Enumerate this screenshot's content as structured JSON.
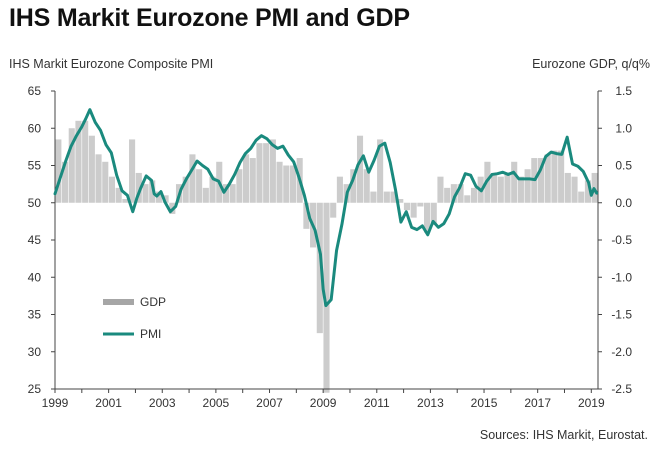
{
  "title": "IHS Markit Eurozone PMI and GDP",
  "source": "Sources: IHS Markit, Eurostat.",
  "colors": {
    "gdp_bar": "#cccccc",
    "pmi_line": "#1a8a7e",
    "axis": "#444444",
    "legend_gdp": "#a6a6a6"
  },
  "chart_data": {
    "type": "bar+line",
    "title": "IHS Markit Eurozone PMI and GDP",
    "ylabel_left": "IHS Markit Eurozone Composite PMI",
    "ylabel_right": "Eurozone GDP, q/q%",
    "ylim_left": [
      25,
      65
    ],
    "ylim_right": [
      -2.5,
      1.5
    ],
    "yticks_left": [
      "65",
      "60",
      "55",
      "50",
      "45",
      "40",
      "35",
      "30",
      "25"
    ],
    "yticks_right": [
      "1.5",
      "1.0",
      "0.5",
      "0.0",
      "-0.5",
      "-1.0",
      "-1.5",
      "-2.0",
      "-2.5"
    ],
    "xticks": [
      "1999",
      "2001",
      "2003",
      "2005",
      "2007",
      "2009",
      "2011",
      "2013",
      "2015",
      "2017",
      "2019"
    ],
    "xlim": [
      1999.0,
      2019.25
    ],
    "legend": {
      "gdp": "GDP",
      "pmi": "PMI",
      "placement": "lower-left"
    },
    "grid": false,
    "series": [
      {
        "name": "GDP",
        "type": "bar",
        "axis": "right",
        "quarters_start": "1999Q1",
        "values": [
          0.85,
          0.55,
          1.0,
          1.1,
          1.1,
          0.9,
          0.65,
          0.55,
          0.35,
          0.2,
          0.05,
          0.85,
          0.4,
          0.25,
          0.3,
          0.15,
          0.1,
          -0.15,
          0.25,
          0.35,
          0.65,
          0.45,
          0.2,
          0.35,
          0.55,
          0.25,
          0.25,
          0.45,
          0.65,
          0.6,
          0.8,
          0.8,
          0.85,
          0.55,
          0.5,
          0.5,
          0.6,
          -0.35,
          -0.6,
          -1.75,
          -2.55,
          -0.2,
          0.35,
          0.25,
          0.45,
          0.9,
          0.45,
          0.15,
          0.85,
          0.15,
          0.15,
          0.05,
          -0.1,
          -0.2,
          -0.05,
          -0.4,
          -0.3,
          0.35,
          0.2,
          0.25,
          0.25,
          0.1,
          0.2,
          0.35,
          0.55,
          0.4,
          0.35,
          0.4,
          0.55,
          0.35,
          0.45,
          0.6,
          0.6,
          0.65,
          0.7,
          0.7,
          0.4,
          0.35,
          0.15,
          0.3,
          0.4
        ]
      },
      {
        "name": "PMI",
        "type": "line",
        "axis": "left",
        "x": [
          1999.0,
          1999.2,
          1999.4,
          1999.6,
          1999.8,
          2000.0,
          2000.15,
          2000.3,
          2000.5,
          2000.7,
          2000.9,
          2001.1,
          2001.3,
          2001.5,
          2001.7,
          2001.9,
          2002.05,
          2002.2,
          2002.4,
          2002.6,
          2002.7,
          2002.8,
          2002.95,
          2003.1,
          2003.3,
          2003.5,
          2003.7,
          2003.9,
          2004.1,
          2004.3,
          2004.5,
          2004.7,
          2004.9,
          2005.1,
          2005.3,
          2005.5,
          2005.7,
          2005.9,
          2006.1,
          2006.3,
          2006.5,
          2006.7,
          2006.9,
          2007.1,
          2007.3,
          2007.5,
          2007.7,
          2007.9,
          2008.1,
          2008.3,
          2008.5,
          2008.7,
          2008.9,
          2009.0,
          2009.1,
          2009.3,
          2009.5,
          2009.7,
          2009.9,
          2010.1,
          2010.3,
          2010.5,
          2010.7,
          2010.9,
          2011.1,
          2011.3,
          2011.5,
          2011.7,
          2011.9,
          2012.1,
          2012.3,
          2012.5,
          2012.7,
          2012.9,
          2013.1,
          2013.3,
          2013.5,
          2013.7,
          2013.9,
          2014.1,
          2014.3,
          2014.5,
          2014.7,
          2014.9,
          2015.1,
          2015.3,
          2015.5,
          2015.7,
          2015.9,
          2016.1,
          2016.3,
          2016.5,
          2016.7,
          2016.9,
          2017.1,
          2017.3,
          2017.5,
          2017.7,
          2017.9,
          2018.1,
          2018.3,
          2018.5,
          2018.7,
          2018.9,
          2019.0,
          2019.1,
          2019.2
        ],
        "values": [
          51.2,
          53.4,
          55.6,
          57.6,
          59.0,
          60.2,
          61.3,
          62.5,
          60.8,
          59.7,
          57.8,
          56.7,
          53.7,
          51.6,
          51.0,
          48.8,
          50.6,
          52.0,
          53.6,
          53.0,
          51.2,
          50.9,
          51.5,
          50.1,
          48.8,
          49.5,
          51.8,
          53.2,
          54.4,
          55.6,
          55.0,
          54.5,
          53.2,
          52.9,
          51.4,
          52.5,
          53.8,
          55.4,
          56.6,
          57.3,
          58.4,
          59.0,
          58.6,
          57.8,
          57.3,
          57.6,
          56.4,
          55.5,
          53.4,
          51.0,
          47.9,
          46.3,
          43.1,
          38.4,
          36.2,
          37.0,
          43.6,
          47.1,
          51.4,
          53.0,
          55.1,
          56.3,
          54.1,
          55.7,
          57.6,
          58.0,
          55.4,
          51.7,
          47.4,
          48.8,
          46.7,
          46.4,
          46.9,
          45.7,
          47.5,
          46.7,
          47.2,
          48.5,
          50.8,
          52.1,
          53.9,
          53.7,
          52.2,
          51.6,
          52.9,
          53.8,
          53.9,
          54.1,
          53.8,
          54.1,
          53.2,
          53.2,
          53.2,
          53.1,
          54.4,
          56.2,
          56.8,
          56.6,
          56.5,
          58.8,
          55.2,
          54.9,
          54.2,
          52.7,
          51.0,
          51.9,
          51.3
        ]
      }
    ]
  }
}
